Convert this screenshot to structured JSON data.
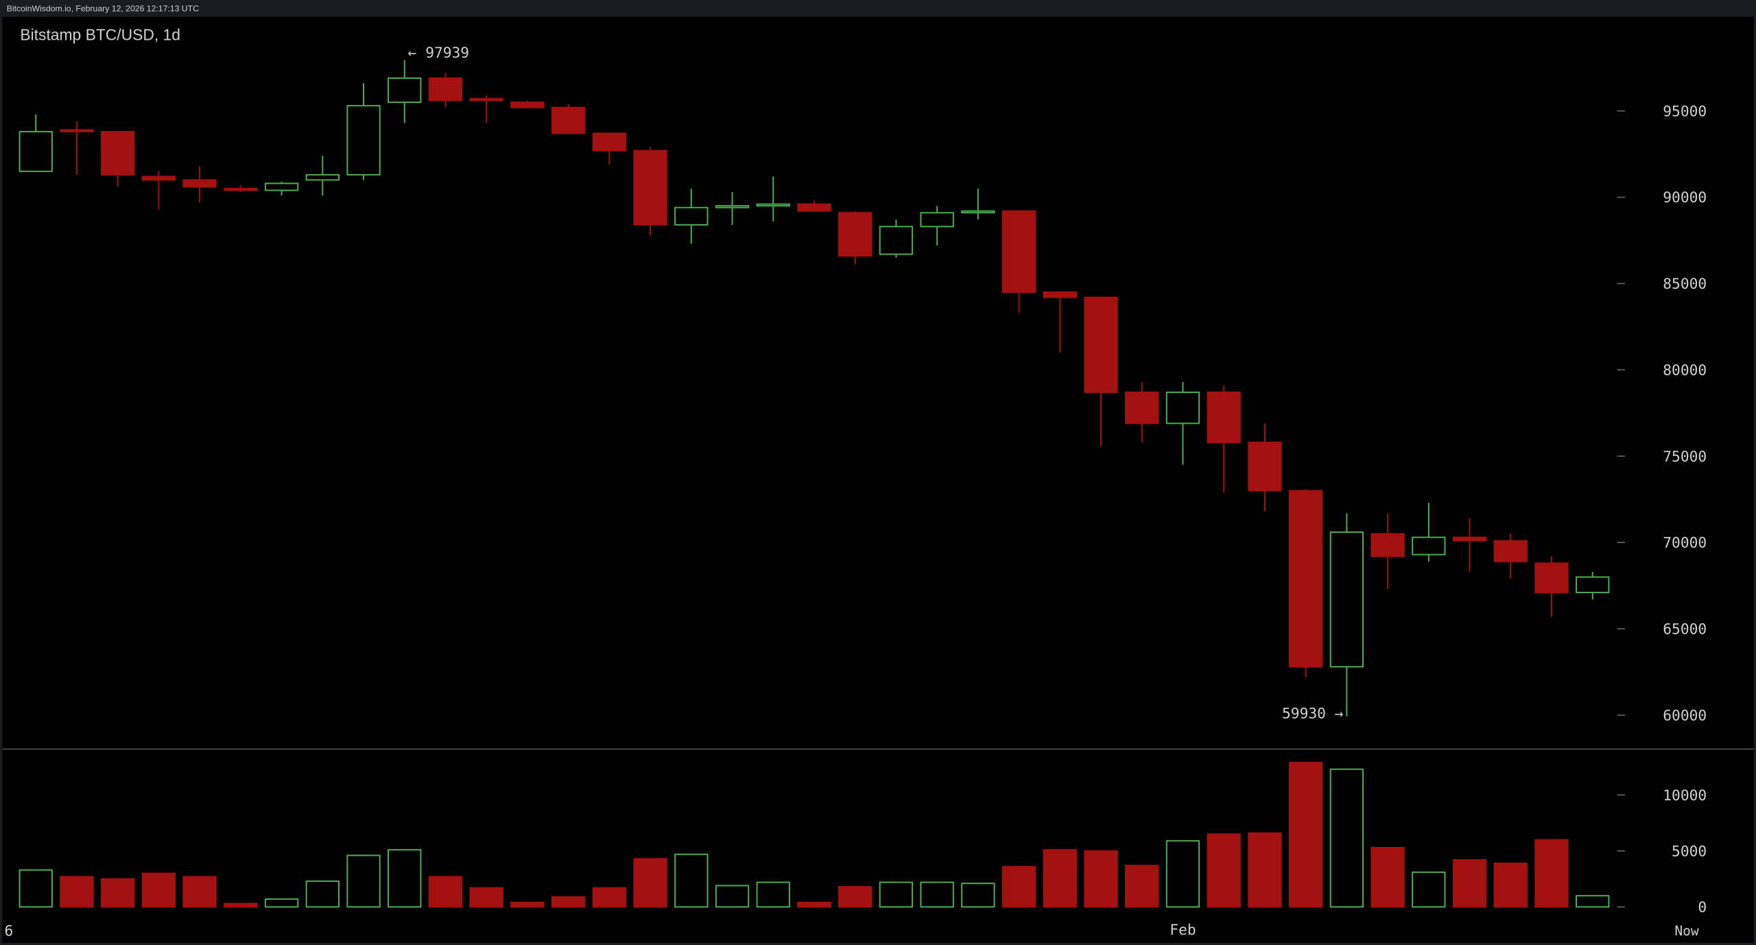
{
  "header": "BitcoinWisdom.io, February 12, 2026 12:17:13 UTC",
  "chart_data": {
    "type": "candlestick",
    "title": "Bitstamp BTC/USD, 1d",
    "categories": [
      null,
      null,
      null,
      null,
      null,
      null,
      null,
      null,
      null,
      null,
      null,
      null,
      null,
      null,
      null,
      null,
      null,
      null,
      null,
      null,
      null,
      null,
      null,
      null,
      null,
      null,
      null,
      null,
      "Feb",
      null,
      null,
      null,
      null,
      null,
      null,
      null,
      null,
      null,
      null
    ],
    "x_start_label": "6",
    "x_end_label": "Now",
    "open": [
      91500,
      93900,
      93800,
      91200,
      91000,
      90500,
      90400,
      91000,
      91300,
      95500,
      96900,
      95700,
      95500,
      95200,
      93700,
      92700,
      88400,
      89400,
      89500,
      89600,
      89100,
      86700,
      88300,
      89200,
      89200,
      84500,
      84200,
      78700,
      76900,
      78700,
      75800,
      73000,
      62800,
      70500,
      69300,
      70300,
      70100,
      68800,
      67100
    ],
    "high": [
      94800,
      94400,
      93800,
      91500,
      91800,
      90700,
      90900,
      92400,
      96600,
      97939,
      97200,
      95900,
      95600,
      95400,
      93700,
      92900,
      90500,
      90300,
      91200,
      89800,
      89200,
      88700,
      89500,
      90500,
      89200,
      84500,
      84200,
      79300,
      79300,
      79100,
      76900,
      73100,
      71700,
      71700,
      72300,
      71400,
      70500,
      69200,
      68300
    ],
    "low": [
      91500,
      91300,
      90600,
      89300,
      89700,
      90300,
      90100,
      90100,
      91000,
      94300,
      95200,
      94300,
      95200,
      93700,
      91900,
      87800,
      87300,
      88400,
      88600,
      89200,
      86100,
      86500,
      87200,
      88700,
      83300,
      81000,
      75600,
      75800,
      74500,
      72900,
      71800,
      62200,
      59930,
      67300,
      68900,
      68300,
      67900,
      65700,
      66700
    ],
    "close": [
      93800,
      93800,
      91300,
      91000,
      90600,
      90400,
      90800,
      91300,
      95300,
      96900,
      95600,
      95600,
      95200,
      93700,
      92700,
      88400,
      89400,
      89500,
      89600,
      89200,
      86600,
      88300,
      89100,
      89200,
      84500,
      84200,
      78700,
      76900,
      78700,
      75800,
      73000,
      62800,
      70600,
      69200,
      70300,
      70100,
      68900,
      67100,
      68000
    ],
    "volume": [
      3300,
      2700,
      2500,
      3000,
      2700,
      300,
      700,
      2300,
      4600,
      5100,
      2700,
      1700,
      400,
      900,
      1700,
      4300,
      4700,
      1900,
      2200,
      400,
      1800,
      2200,
      2200,
      2100,
      3600,
      5100,
      5000,
      3700,
      5900,
      6500,
      6600,
      12900,
      12300,
      5300,
      3100,
      4200,
      3900,
      6000,
      1000
    ],
    "up_color": "#4caf50",
    "down_color": "#a31111",
    "ylim": [
      58100,
      100450
    ],
    "yticks": [
      60000,
      65000,
      70000,
      75000,
      80000,
      85000,
      90000,
      95000
    ],
    "volume_ylim": [
      -800,
      13800
    ],
    "volume_yticks": [
      0,
      5000,
      10000
    ],
    "high_label": "← 97939",
    "low_label": "59930 →"
  }
}
